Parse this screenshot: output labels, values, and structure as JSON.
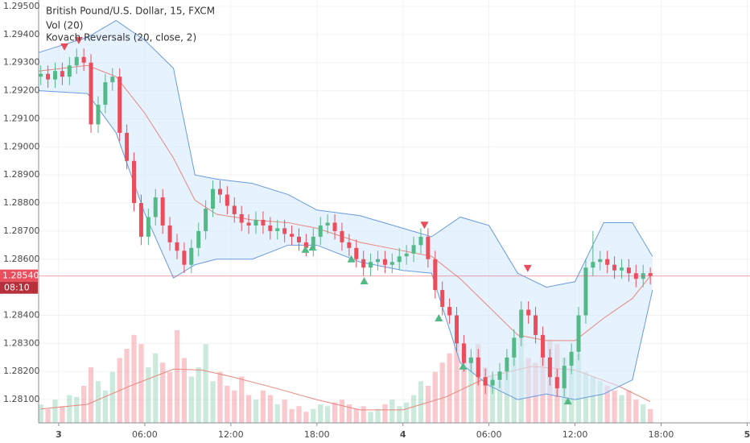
{
  "chart_data": {
    "type": "candlestick",
    "title": "British Pound/U.S. Dollar, 15, FXCM",
    "indicators": [
      "Vol (20)",
      "Kovach Reversals (20, close, 2)"
    ],
    "x": [
      -1.25,
      -0.75,
      -0.25,
      0.25,
      0.75,
      1.25,
      1.75,
      2.25,
      2.75,
      3.25,
      3.75,
      4.25,
      4.75,
      5.25,
      5.75,
      6.25,
      6.75,
      7.25,
      7.75,
      8.25,
      8.75,
      9.25,
      9.75,
      10.25,
      10.75,
      11.25,
      11.75,
      12.25,
      12.75,
      13.25,
      13.75,
      14.25,
      14.75,
      15.25,
      15.75,
      16.25,
      16.75,
      17.25,
      17.75,
      18.25,
      18.75,
      19.25,
      19.75,
      20.25,
      20.75,
      21.25,
      21.75,
      22.25,
      22.75,
      23.25,
      23.75,
      24.25,
      24.75,
      25.25,
      25.75,
      26.25,
      26.75,
      27.25,
      27.75,
      28.25,
      28.75,
      29.25,
      29.75,
      30.25,
      30.75,
      31.25,
      31.75,
      32.25,
      32.75,
      33.25,
      33.75,
      34.25,
      34.75,
      35.25,
      35.75,
      36.25,
      36.75,
      37.25,
      37.75,
      38.25,
      38.75,
      39.25,
      39.75,
      40.25,
      40.75,
      41.25
    ],
    "open": [
      1.2925,
      1.2926,
      1.2924,
      1.2927,
      1.2925,
      1.2929,
      1.2932,
      1.293,
      1.2908,
      1.2915,
      1.2923,
      1.2925,
      1.2905,
      1.2895,
      1.288,
      1.2868,
      1.2875,
      1.2882,
      1.2872,
      1.2866,
      1.2863,
      1.2858,
      1.2864,
      1.287,
      1.2878,
      1.2885,
      1.2883,
      1.2879,
      1.2876,
      1.2873,
      1.2872,
      1.2874,
      1.2872,
      1.287,
      1.2871,
      1.2869,
      1.2868,
      1.2866,
      1.2864,
      1.2868,
      1.2872,
      1.2873,
      1.287,
      1.2866,
      1.2864,
      1.286,
      1.2857,
      1.2859,
      1.286,
      1.2858,
      1.2859,
      1.2861,
      1.2862,
      1.2865,
      1.2868,
      1.286,
      1.2849,
      1.2843,
      1.284,
      1.283,
      1.2823,
      1.2825,
      1.2818,
      1.2815,
      1.2817,
      1.282,
      1.2825,
      1.2832,
      1.2842,
      1.284,
      1.2833,
      1.2825,
      1.2818,
      1.2814,
      1.2822,
      1.2827,
      1.284,
      1.2857,
      1.2859,
      1.286,
      1.2858,
      1.2856,
      1.2857,
      1.2855,
      1.2853,
      1.2855
    ],
    "high": [
      1.2929,
      1.2929,
      1.293,
      1.293,
      1.2932,
      1.2935,
      1.2935,
      1.2933,
      1.2918,
      1.2926,
      1.2928,
      1.2928,
      1.2908,
      1.2898,
      1.2883,
      1.2878,
      1.2885,
      1.2885,
      1.2875,
      1.2869,
      1.2866,
      1.2867,
      1.2873,
      1.2881,
      1.2888,
      1.2888,
      1.2886,
      1.2882,
      1.2879,
      1.2876,
      1.2877,
      1.2877,
      1.2875,
      1.2874,
      1.2874,
      1.2872,
      1.2871,
      1.2869,
      1.2871,
      1.2875,
      1.2876,
      1.2876,
      1.2873,
      1.2869,
      1.2867,
      1.2863,
      1.2862,
      1.2863,
      1.2863,
      1.2862,
      1.2864,
      1.2865,
      1.2868,
      1.2871,
      1.2871,
      1.2863,
      1.2852,
      1.2846,
      1.2843,
      1.2833,
      1.2828,
      1.2828,
      1.2821,
      1.282,
      1.2823,
      1.2828,
      1.2835,
      1.2845,
      1.2845,
      1.2843,
      1.2836,
      1.2828,
      1.2821,
      1.2825,
      1.283,
      1.2843,
      1.286,
      1.287,
      1.2863,
      1.2863,
      1.2861,
      1.286,
      1.286,
      1.2858,
      1.2858,
      1.2857
    ],
    "low": [
      1.2922,
      1.2921,
      1.2921,
      1.2922,
      1.2922,
      1.2926,
      1.2927,
      1.2905,
      1.2905,
      1.2912,
      1.292,
      1.2902,
      1.2892,
      1.2877,
      1.2865,
      1.2865,
      1.2872,
      1.2869,
      1.2863,
      1.286,
      1.2855,
      1.2855,
      1.2861,
      1.2867,
      1.2875,
      1.288,
      1.2876,
      1.2873,
      1.287,
      1.2869,
      1.2869,
      1.2869,
      1.2867,
      1.2867,
      1.2866,
      1.2865,
      1.2863,
      1.2861,
      1.2861,
      1.2865,
      1.2869,
      1.2867,
      1.2863,
      1.2861,
      1.2857,
      1.2854,
      1.2854,
      1.2856,
      1.2855,
      1.2855,
      1.2856,
      1.2858,
      1.2859,
      1.2862,
      1.2857,
      1.2846,
      1.284,
      1.2837,
      1.2827,
      1.282,
      1.282,
      1.2815,
      1.2812,
      1.2812,
      1.2814,
      1.2817,
      1.2822,
      1.2829,
      1.2837,
      1.283,
      1.2822,
      1.2815,
      1.2811,
      1.2811,
      1.2819,
      1.2824,
      1.2837,
      1.2854,
      1.2856,
      1.2855,
      1.2853,
      1.2853,
      1.2852,
      1.285,
      1.285,
      1.2851
    ],
    "close": [
      1.2926,
      1.2924,
      1.2927,
      1.2925,
      1.2929,
      1.2932,
      1.293,
      1.2908,
      1.2915,
      1.2923,
      1.2925,
      1.2905,
      1.2895,
      1.288,
      1.2868,
      1.2875,
      1.2882,
      1.2872,
      1.2866,
      1.2863,
      1.2858,
      1.2864,
      1.287,
      1.2878,
      1.2885,
      1.2883,
      1.2879,
      1.2876,
      1.2873,
      1.2872,
      1.2874,
      1.2872,
      1.287,
      1.2871,
      1.2869,
      1.2868,
      1.2866,
      1.2864,
      1.2868,
      1.2872,
      1.2873,
      1.287,
      1.2866,
      1.2864,
      1.286,
      1.2857,
      1.2859,
      1.286,
      1.2858,
      1.2859,
      1.2861,
      1.2862,
      1.2865,
      1.2868,
      1.286,
      1.2849,
      1.2843,
      1.284,
      1.283,
      1.2823,
      1.2825,
      1.2818,
      1.2815,
      1.2817,
      1.282,
      1.2825,
      1.2832,
      1.2842,
      1.284,
      1.2833,
      1.2825,
      1.2818,
      1.2814,
      1.2822,
      1.2827,
      1.284,
      1.2857,
      1.2859,
      1.286,
      1.2858,
      1.2856,
      1.2857,
      1.2855,
      1.2853,
      1.2855,
      1.2854
    ],
    "volume": [
      20,
      15,
      25,
      18,
      30,
      28,
      40,
      60,
      45,
      35,
      55,
      70,
      80,
      95,
      85,
      60,
      75,
      65,
      55,
      100,
      70,
      50,
      60,
      85,
      45,
      55,
      40,
      35,
      50,
      30,
      25,
      35,
      30,
      20,
      25,
      15,
      18,
      12,
      15,
      20,
      18,
      22,
      25,
      20,
      15,
      18,
      12,
      15,
      20,
      25,
      18,
      22,
      30,
      45,
      40,
      55,
      65,
      75,
      90,
      80,
      70,
      85,
      60,
      50,
      45,
      55,
      80,
      95,
      70,
      65,
      75,
      90,
      85,
      70,
      60,
      75,
      55,
      50,
      45,
      40,
      35,
      30,
      35,
      25,
      20,
      15
    ],
    "volume_ma": {
      "x": [
        -1.25,
        2,
        5,
        8,
        10,
        12,
        15,
        18,
        21,
        24,
        27,
        30,
        33,
        36,
        39,
        41.25
      ],
      "values": [
        15,
        20,
        40,
        58,
        57,
        50,
        38,
        25,
        14,
        14,
        28,
        50,
        61,
        57,
        40,
        23
      ]
    },
    "bands": {
      "x": [
        -1.4,
        2,
        4,
        6,
        8,
        9.5,
        11,
        13.5,
        16,
        18,
        21,
        24,
        26,
        28,
        30,
        32,
        34,
        36,
        38,
        40,
        41.4
      ],
      "upper": [
        1.29336,
        1.2939,
        1.2945,
        1.2938,
        1.2928,
        1.289,
        1.28885,
        1.2887,
        1.2883,
        1.28775,
        1.28755,
        1.2871,
        1.2868,
        1.2875,
        1.2872,
        1.2855,
        1.285,
        1.2852,
        1.2873,
        1.2873,
        1.2861
      ],
      "middle": [
        1.2927,
        1.2929,
        1.2925,
        1.2912,
        1.2896,
        1.2881,
        1.2876,
        1.2874,
        1.2873,
        1.2871,
        1.2866,
        1.2863,
        1.2861,
        1.2853,
        1.2843,
        1.2833,
        1.2831,
        1.2831,
        1.2839,
        1.2846,
        1.2855
      ],
      "lower": [
        1.292,
        1.2919,
        1.2905,
        1.28763,
        1.28533,
        1.2858,
        1.286,
        1.286,
        1.2865,
        1.2865,
        1.2859,
        1.2856,
        1.2855,
        1.2823,
        1.2815,
        1.281,
        1.2812,
        1.281,
        1.2812,
        1.2817,
        1.2849
      ]
    },
    "reversals_down": {
      "x": [
        0.4,
        1.4,
        25.5,
        32.7
      ],
      "y": [
        1.29357,
        1.2938,
        1.28722,
        1.28568
      ]
    },
    "reversals_up": {
      "x": [
        17.2,
        17.7,
        20.4,
        21.3,
        26.5,
        28.2,
        35.5
      ],
      "y": [
        1.28634,
        1.28642,
        1.286,
        1.28522,
        1.2839,
        1.28218,
        1.28094
      ]
    },
    "current_price": {
      "value": 1.2854,
      "label": "1.28540"
    },
    "countdown": "08:10",
    "xlim": [
      -1.4,
      48.2
    ],
    "xticks": [
      {
        "value": 0,
        "label": "3"
      },
      {
        "value": 6,
        "label": "06:00"
      },
      {
        "value": 12,
        "label": "12:00"
      },
      {
        "value": 18,
        "label": "18:00"
      },
      {
        "value": 24,
        "label": "4"
      },
      {
        "value": 30,
        "label": "06:00"
      },
      {
        "value": 36,
        "label": "12:00"
      },
      {
        "value": 42,
        "label": "18:00"
      },
      {
        "value": 48,
        "label": "5"
      }
    ],
    "ylim": [
      1.28017,
      1.29523
    ],
    "yticks": [
      {
        "value": 1.295,
        "label": "1.29500"
      },
      {
        "value": 1.294,
        "label": "1.29400"
      },
      {
        "value": 1.293,
        "label": "1.29300"
      },
      {
        "value": 1.292,
        "label": "1.29200"
      },
      {
        "value": 1.291,
        "label": "1.29100"
      },
      {
        "value": 1.29,
        "label": "1.29000"
      },
      {
        "value": 1.289,
        "label": "1.28900"
      },
      {
        "value": 1.288,
        "label": "1.28800"
      },
      {
        "value": 1.287,
        "label": "1.28700"
      },
      {
        "value": 1.286,
        "label": "1.28600"
      },
      {
        "value": 1.284,
        "label": "1.28400"
      },
      {
        "value": 1.283,
        "label": "1.28300"
      },
      {
        "value": 1.282,
        "label": "1.28200"
      },
      {
        "value": 1.281,
        "label": "1.28100"
      }
    ],
    "grid": true,
    "up_color": "#53b987",
    "down_color": "#eb4d5c",
    "band_color": "#6a9be0",
    "middle_color": "#e9877f"
  }
}
